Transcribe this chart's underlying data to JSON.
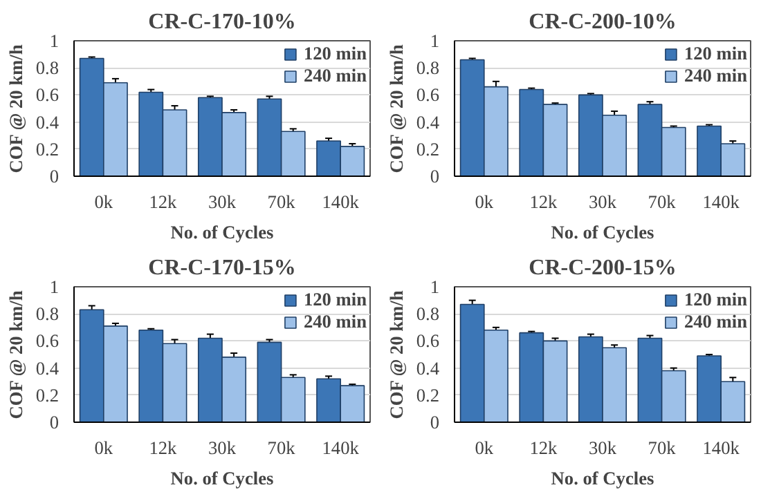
{
  "chart_data": [
    {
      "type": "bar",
      "title": "CR-C-170-10%",
      "xlabel": "No. of Cycles",
      "ylabel": "COF @ 20 km/h",
      "categories": [
        "0k",
        "12k",
        "30k",
        "70k",
        "140k"
      ],
      "ylim": [
        0,
        1
      ],
      "yticks": [
        0,
        0.2,
        0.4,
        0.6,
        0.8,
        1
      ],
      "grid": "y",
      "legend": "top right",
      "series": [
        {
          "name": "120 min",
          "color": "#3c76b6",
          "values": [
            0.87,
            0.62,
            0.58,
            0.57,
            0.26
          ],
          "errors": [
            0.01,
            0.02,
            0.01,
            0.02,
            0.02
          ]
        },
        {
          "name": "240 min",
          "color": "#9dc0e8",
          "values": [
            0.69,
            0.49,
            0.47,
            0.33,
            0.22
          ],
          "errors": [
            0.03,
            0.03,
            0.02,
            0.02,
            0.02
          ]
        }
      ]
    },
    {
      "type": "bar",
      "title": "CR-C-200-10%",
      "xlabel": "No. of Cycles",
      "ylabel": "COF @ 20 km/h",
      "categories": [
        "0k",
        "12k",
        "30k",
        "70k",
        "140k"
      ],
      "ylim": [
        0,
        1
      ],
      "yticks": [
        0,
        0.2,
        0.4,
        0.6,
        0.8,
        1
      ],
      "grid": "y",
      "legend": "top right",
      "series": [
        {
          "name": "120 min",
          "color": "#3c76b6",
          "values": [
            0.86,
            0.64,
            0.6,
            0.53,
            0.37
          ],
          "errors": [
            0.01,
            0.01,
            0.01,
            0.02,
            0.01
          ]
        },
        {
          "name": "240 min",
          "color": "#9dc0e8",
          "values": [
            0.66,
            0.53,
            0.45,
            0.36,
            0.24
          ],
          "errors": [
            0.04,
            0.01,
            0.03,
            0.01,
            0.02
          ]
        }
      ]
    },
    {
      "type": "bar",
      "title": "CR-C-170-15%",
      "xlabel": "No. of Cycles",
      "ylabel": "COF @ 20 km/h",
      "categories": [
        "0k",
        "12k",
        "30k",
        "70k",
        "140k"
      ],
      "ylim": [
        0,
        1
      ],
      "yticks": [
        0,
        0.2,
        0.4,
        0.6,
        0.8,
        1
      ],
      "grid": "y",
      "legend": "top right",
      "series": [
        {
          "name": "120 min",
          "color": "#3c76b6",
          "values": [
            0.83,
            0.68,
            0.62,
            0.59,
            0.32
          ],
          "errors": [
            0.03,
            0.01,
            0.03,
            0.02,
            0.02
          ]
        },
        {
          "name": "240 min",
          "color": "#9dc0e8",
          "values": [
            0.71,
            0.58,
            0.48,
            0.33,
            0.27
          ],
          "errors": [
            0.02,
            0.03,
            0.03,
            0.02,
            0.01
          ]
        }
      ]
    },
    {
      "type": "bar",
      "title": "CR-C-200-15%",
      "xlabel": "No. of Cycles",
      "ylabel": "COF @ 20 km/h",
      "categories": [
        "0k",
        "12k",
        "30k",
        "70k",
        "140k"
      ],
      "ylim": [
        0,
        1
      ],
      "yticks": [
        0,
        0.2,
        0.4,
        0.6,
        0.8,
        1
      ],
      "grid": "y",
      "legend": "top right",
      "series": [
        {
          "name": "120 min",
          "color": "#3c76b6",
          "values": [
            0.87,
            0.66,
            0.63,
            0.62,
            0.49
          ],
          "errors": [
            0.03,
            0.01,
            0.02,
            0.02,
            0.01
          ]
        },
        {
          "name": "240 min",
          "color": "#9dc0e8",
          "values": [
            0.68,
            0.6,
            0.55,
            0.38,
            0.3
          ],
          "errors": [
            0.02,
            0.02,
            0.02,
            0.02,
            0.03
          ]
        }
      ]
    }
  ]
}
